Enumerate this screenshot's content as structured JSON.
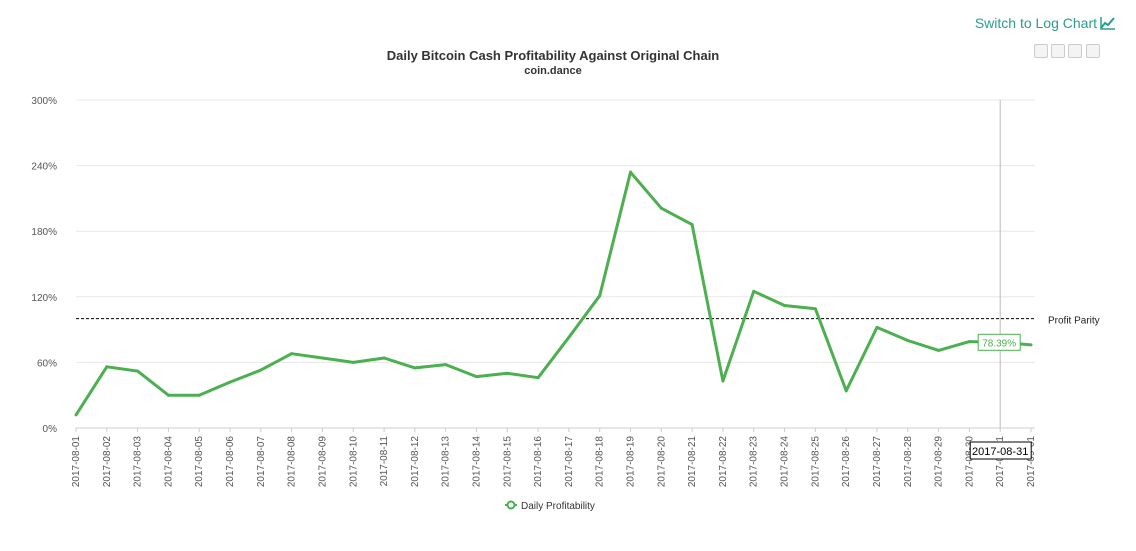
{
  "header": {
    "log_link_label": "Switch to Log Chart"
  },
  "toolbox": {
    "icons": [
      "zoom-icon",
      "reset-zoom-icon",
      "data-view-icon",
      "menu-icon"
    ]
  },
  "colors": {
    "series": "#4caf50",
    "parity_line": "#000000",
    "crosshair": "#bbbbbb",
    "link": "#2a9d8f"
  },
  "chart_data": {
    "type": "line",
    "title": "Daily Bitcoin Cash Profitability Against Original Chain",
    "subtitle": "coin.dance",
    "xlabel": "",
    "ylabel": "",
    "y_unit": "%",
    "ylim": [
      0,
      300
    ],
    "y_ticks": [
      0,
      60,
      120,
      180,
      240,
      300
    ],
    "y_tick_labels": [
      "0%",
      "60%",
      "120%",
      "180%",
      "240%",
      "300%"
    ],
    "grid": true,
    "legend_position": "bottom-center",
    "categories": [
      "2017-08-01",
      "2017-08-02",
      "2017-08-03",
      "2017-08-04",
      "2017-08-05",
      "2017-08-06",
      "2017-08-07",
      "2017-08-08",
      "2017-08-09",
      "2017-08-10",
      "2017-08-11",
      "2017-08-12",
      "2017-08-13",
      "2017-08-14",
      "2017-08-15",
      "2017-08-16",
      "2017-08-17",
      "2017-08-18",
      "2017-08-19",
      "2017-08-20",
      "2017-08-21",
      "2017-08-22",
      "2017-08-23",
      "2017-08-24",
      "2017-08-25",
      "2017-08-26",
      "2017-08-27",
      "2017-08-28",
      "2017-08-29",
      "2017-08-30",
      "2017-08-31",
      "2017-09-01"
    ],
    "series": [
      {
        "name": "Daily Profitability",
        "values": [
          12,
          56,
          52,
          30,
          30,
          42,
          53,
          68,
          64,
          60,
          64,
          55,
          58,
          47,
          50,
          46,
          83,
          121,
          234,
          201,
          186,
          43,
          125,
          112,
          109,
          34,
          92,
          80,
          71,
          79,
          78.39,
          76
        ]
      }
    ],
    "reference_line": {
      "label": "Profit Parity",
      "value": 100
    },
    "highlight": {
      "category": "2017-08-31",
      "value_label": "78.39%"
    }
  }
}
